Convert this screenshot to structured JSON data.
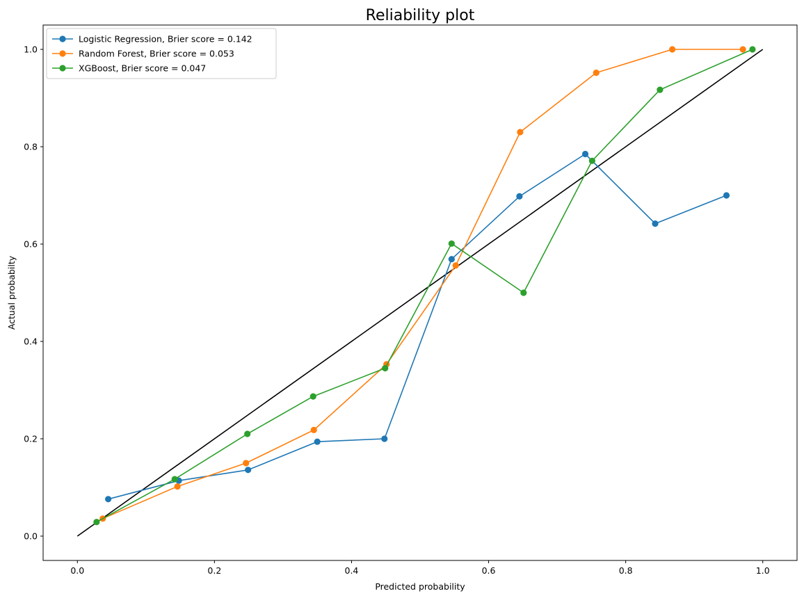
{
  "chart_data": {
    "type": "line",
    "title": "Reliability plot",
    "xlabel": "Predicted probability",
    "ylabel": "Actual probabilty",
    "xlim": [
      -0.05,
      1.05
    ],
    "ylim": [
      -0.05,
      1.05
    ],
    "xticks": [
      "0.0",
      "0.2",
      "0.4",
      "0.6",
      "0.8",
      "1.0"
    ],
    "yticks": [
      "0.0",
      "0.2",
      "0.4",
      "0.6",
      "0.8",
      "1.0"
    ],
    "grid": false,
    "legend_position": "top-left",
    "reference_line": {
      "x": [
        0,
        1
      ],
      "y": [
        0,
        1
      ],
      "color": "#000000"
    },
    "series": [
      {
        "name": "Logistic Regression, Brier score = 0.142",
        "color": "#1f77b4",
        "x": [
          0.045,
          0.148,
          0.249,
          0.35,
          0.448,
          0.546,
          0.645,
          0.741,
          0.843,
          0.947
        ],
        "y": [
          0.076,
          0.114,
          0.136,
          0.194,
          0.2,
          0.569,
          0.698,
          0.785,
          0.642,
          0.7
        ]
      },
      {
        "name": "Random Forest, Brier score = 0.053",
        "color": "#ff7f0e",
        "x": [
          0.037,
          0.146,
          0.246,
          0.345,
          0.451,
          0.552,
          0.646,
          0.757,
          0.868,
          0.971
        ],
        "y": [
          0.036,
          0.102,
          0.15,
          0.218,
          0.353,
          0.556,
          0.83,
          0.952,
          1.0,
          1.0
        ]
      },
      {
        "name": "XGBoost, Brier score = 0.047",
        "color": "#2ca02c",
        "x": [
          0.028,
          0.142,
          0.248,
          0.344,
          0.449,
          0.546,
          0.651,
          0.751,
          0.85,
          0.985
        ],
        "y": [
          0.029,
          0.117,
          0.21,
          0.287,
          0.345,
          0.601,
          0.5,
          0.771,
          0.917,
          1.0
        ]
      }
    ]
  }
}
